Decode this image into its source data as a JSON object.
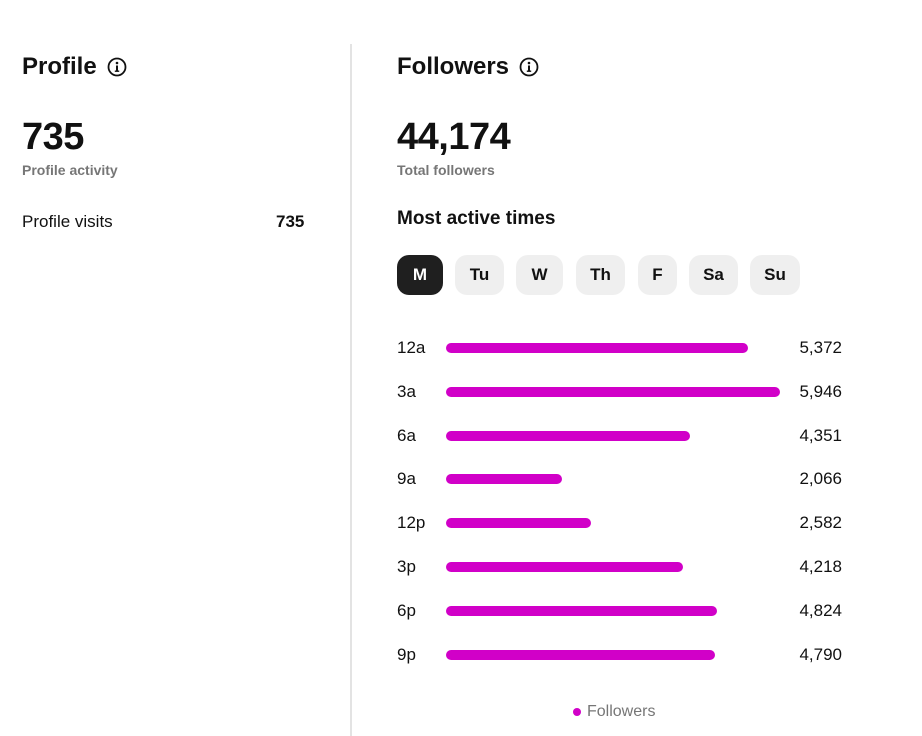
{
  "profile": {
    "title": "Profile",
    "total": "735",
    "caption": "Profile activity",
    "row_label": "Profile visits",
    "row_value": "735"
  },
  "followers": {
    "title": "Followers",
    "total": "44,174",
    "caption": "Total followers",
    "subheading": "Most active times",
    "days": [
      "M",
      "Tu",
      "W",
      "Th",
      "F",
      "Sa",
      "Su"
    ],
    "selected_day": "M",
    "legend": "Followers"
  },
  "icons": {
    "info": "info-circle-icon"
  },
  "colors": {
    "bar": "#d100c8",
    "selected_day_bg": "#1f1f1f",
    "day_bg": "#efefef"
  },
  "chart_data": {
    "type": "bar",
    "orientation": "horizontal",
    "categories": [
      "12a",
      "3a",
      "6a",
      "9a",
      "12p",
      "3p",
      "6p",
      "9p"
    ],
    "series": [
      {
        "name": "Followers",
        "values": [
          5372,
          5946,
          4351,
          2066,
          2582,
          4218,
          4824,
          4790
        ],
        "labels": [
          "5,372",
          "5,946",
          "4,351",
          "2,066",
          "2,582",
          "4,218",
          "4,824",
          "4,790"
        ]
      }
    ],
    "legend": "bottom-center",
    "grid": false
  }
}
